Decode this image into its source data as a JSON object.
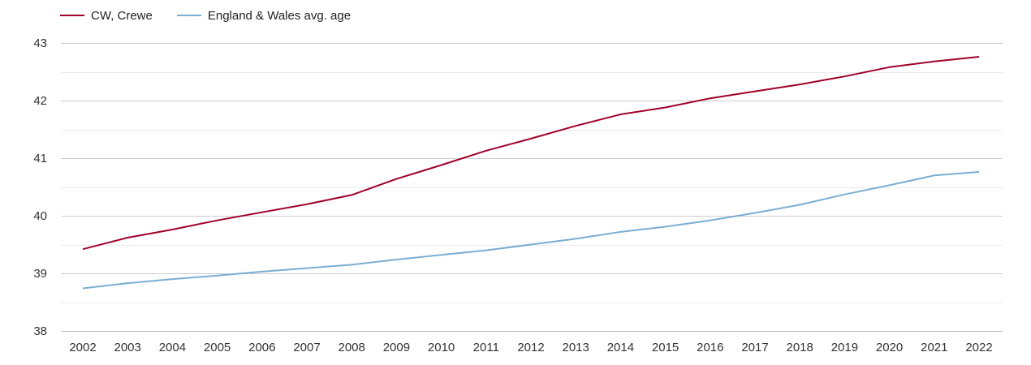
{
  "chart_data": {
    "type": "line",
    "title": "",
    "xlabel": "",
    "ylabel": "",
    "categories": [
      "2002",
      "2003",
      "2004",
      "2005",
      "2006",
      "2007",
      "2008",
      "2009",
      "2010",
      "2011",
      "2012",
      "2013",
      "2014",
      "2015",
      "2016",
      "2017",
      "2018",
      "2019",
      "2020",
      "2021",
      "2022"
    ],
    "ylim": [
      38,
      43
    ],
    "yticks": [
      38,
      39,
      40,
      41,
      42,
      43
    ],
    "grid": true,
    "legend_position": "top-left",
    "series": [
      {
        "name": "CW, Crewe",
        "color": "#a0002a",
        "values": [
          39.42,
          39.62,
          39.76,
          39.92,
          40.06,
          40.2,
          40.36,
          40.64,
          40.88,
          41.13,
          41.34,
          41.56,
          41.76,
          41.88,
          42.04,
          42.16,
          42.28,
          42.42,
          42.58,
          42.68,
          42.76
        ]
      },
      {
        "name": "England & Wales avg. age",
        "color": "#7aaed2",
        "values": [
          38.74,
          38.83,
          38.9,
          38.96,
          39.03,
          39.09,
          39.15,
          39.24,
          39.32,
          39.4,
          39.5,
          39.6,
          39.72,
          39.81,
          39.92,
          40.05,
          40.19,
          40.37,
          40.53,
          40.7,
          40.76
        ]
      }
    ]
  }
}
